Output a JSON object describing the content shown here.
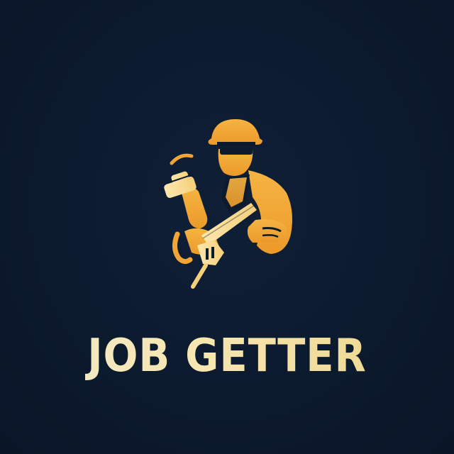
{
  "brand": {
    "name": "JOB GETTER",
    "logo_icon": "worker-with-hammer-and-saw-icon"
  },
  "colors": {
    "background": "#0c1a2e",
    "icon_orange": "#f2a534",
    "icon_light": "#fbe1a0",
    "wordmark": "#f3e6b8"
  }
}
